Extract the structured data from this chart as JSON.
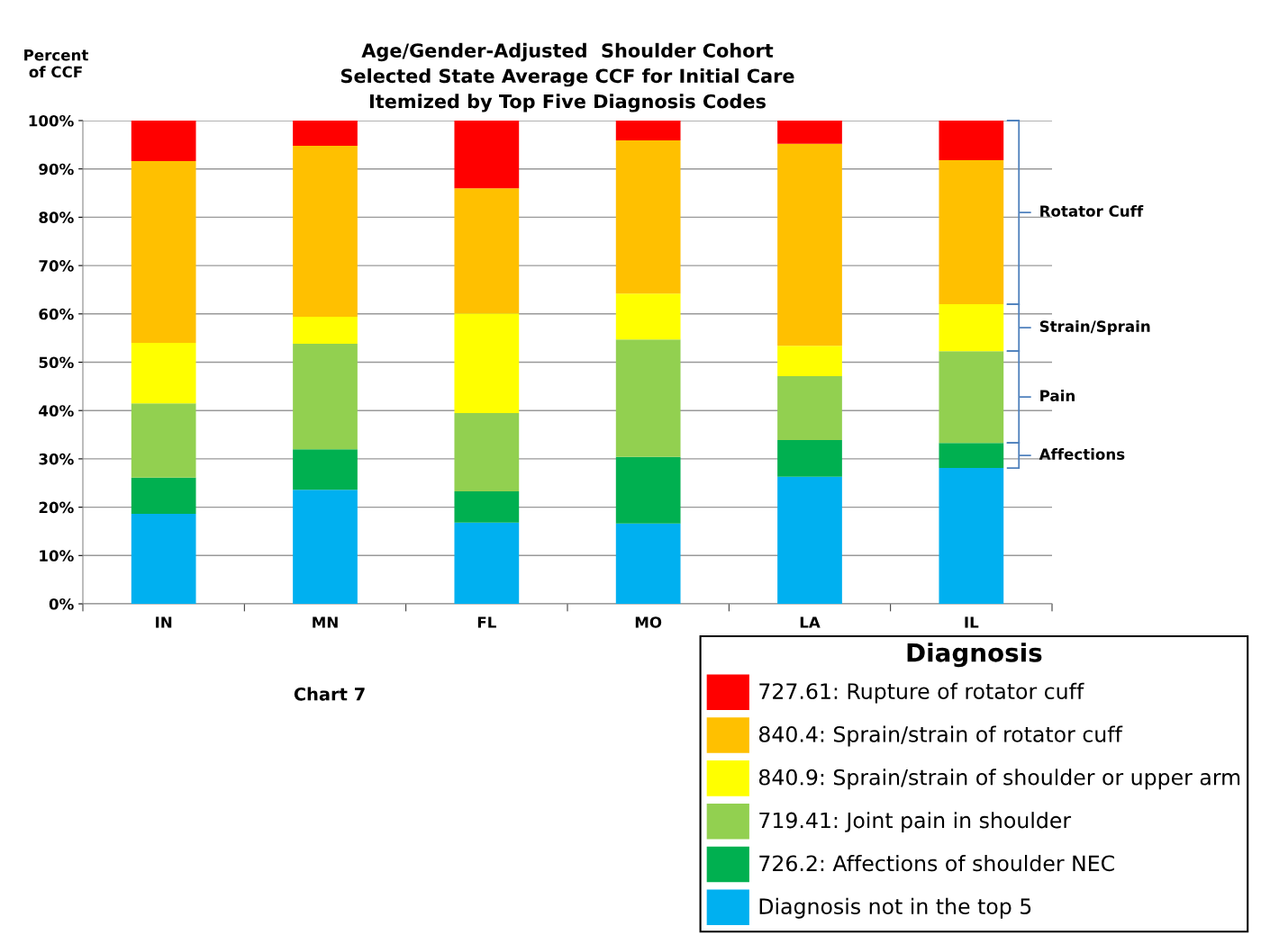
{
  "chart_data": {
    "type": "bar",
    "stacked": true,
    "title": "Age/Gender-Adjusted  Shoulder Cohort\nSelected State Average CCF for Initial Care\nItemized by Top Five Diagnosis Codes",
    "ylabel": "Percent\nof CCF",
    "categories": [
      "IN",
      "MN",
      "FL",
      "MO",
      "LA",
      "IL"
    ],
    "series": [
      {
        "name": "Diagnosis not in the top 5",
        "color": "#00b0f0",
        "values": [
          18.6,
          23.6,
          16.8,
          16.6,
          26.3,
          28.1
        ]
      },
      {
        "name": "726.2: Affections of shoulder NEC",
        "color": "#00b050",
        "values": [
          7.5,
          8.4,
          6.5,
          13.8,
          7.6,
          5.2
        ]
      },
      {
        "name": "719.41: Joint pain in shoulder",
        "color": "#92d050",
        "values": [
          15.4,
          21.8,
          16.2,
          24.3,
          13.2,
          19.0
        ]
      },
      {
        "name": "840.9: Sprain/strain of shoulder or upper arm",
        "color": "#ffff00",
        "values": [
          12.5,
          5.6,
          20.6,
          9.5,
          6.3,
          9.7
        ]
      },
      {
        "name": "840.4: Sprain/strain of rotator cuff",
        "color": "#ffc000",
        "values": [
          37.6,
          35.4,
          25.9,
          31.7,
          41.8,
          29.8
        ]
      },
      {
        "name": "727.61: Rupture of rotator cuff",
        "color": "#ff0000",
        "values": [
          8.4,
          5.2,
          14.0,
          4.1,
          4.8,
          8.2
        ]
      }
    ],
    "ylim": [
      0,
      100
    ],
    "yticks": [
      {
        "value": 0,
        "label": "0%"
      },
      {
        "value": 10,
        "label": "10%"
      },
      {
        "value": 20,
        "label": "20%"
      },
      {
        "value": 30,
        "label": "30%"
      },
      {
        "value": 40,
        "label": "40%"
      },
      {
        "value": 50,
        "label": "50%"
      },
      {
        "value": 60,
        "label": "60%"
      },
      {
        "value": 70,
        "label": "70%"
      },
      {
        "value": 80,
        "label": "80%"
      },
      {
        "value": 90,
        "label": "90%"
      },
      {
        "value": 100,
        "label": "100%"
      }
    ],
    "grid": "y",
    "legend": "bottom right",
    "legend_title": "Diagnosis",
    "annotations": [
      "Rotator Cuff",
      "Strain/Sprain",
      "Pain",
      "Affections",
      "Chart 7"
    ]
  }
}
